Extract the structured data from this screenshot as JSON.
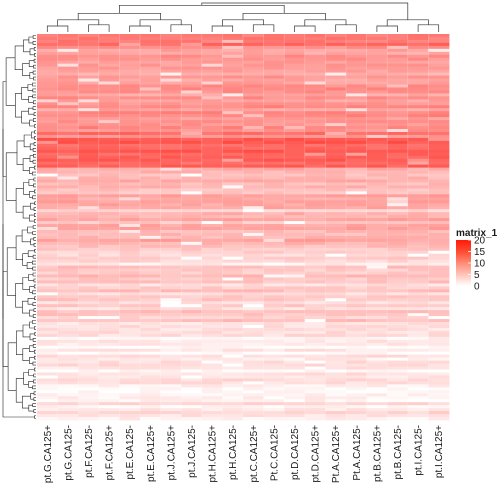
{
  "chart_data": {
    "type": "heatmap",
    "columns": [
      "pt.G.CA125+",
      "pt.G.CA125-",
      "pt.F.CA125-",
      "pt.F.CA125+",
      "pt.E.CA125-",
      "pt.E.CA125+",
      "pt.J.CA125+",
      "pt.J.CA125-",
      "pt.H.CA125+",
      "pt.H.CA125-",
      "pt.C.CA125+",
      "Pt.C.CA125-",
      "pt.D.CA125-",
      "pt.D.CA125+",
      "Pt.A.CA125+",
      "Pt.A.CA125-",
      "pt.B.CA125+",
      "pt.B.CA125-",
      "pt.I.CA125-",
      "pt.I.CA125+"
    ],
    "legend": {
      "title": "matrix_1",
      "ticks": [
        20,
        15,
        10,
        5,
        0
      ],
      "range": [
        0,
        20
      ],
      "colors": {
        "low": "#ffffff",
        "high": "#ff0000"
      }
    },
    "row_profile": {
      "description_free": true,
      "bands": [
        {
          "from": 0.0,
          "to": 0.03,
          "level": 12.5
        },
        {
          "from": 0.03,
          "to": 0.25,
          "level": 9.0
        },
        {
          "from": 0.25,
          "to": 0.34,
          "level": 13.0
        },
        {
          "from": 0.34,
          "to": 0.55,
          "level": 6.5
        },
        {
          "from": 0.55,
          "to": 0.75,
          "level": 4.0
        },
        {
          "from": 0.75,
          "to": 1.0,
          "level": 1.8
        }
      ]
    },
    "row_dendrogram": true,
    "column_dendrogram": true
  }
}
